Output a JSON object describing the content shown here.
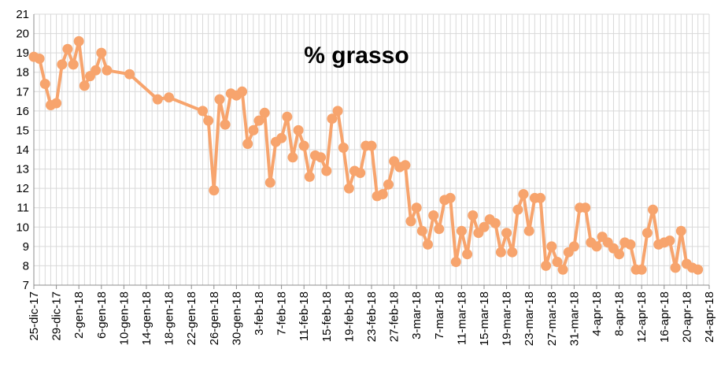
{
  "chart_data": {
    "type": "line",
    "title": "% grasso",
    "xlabel": "",
    "ylabel": "",
    "ylim": [
      7,
      21
    ],
    "y_ticks": [
      7,
      8,
      9,
      10,
      11,
      12,
      13,
      14,
      15,
      16,
      17,
      18,
      19,
      20,
      21
    ],
    "x_range": [
      "2017-12-25",
      "2018-04-24"
    ],
    "x_tick_labels": [
      "25-dic-17",
      "29-dic-17",
      "2-gen-18",
      "6-gen-18",
      "10-gen-18",
      "14-gen-18",
      "18-gen-18",
      "22-gen-18",
      "26-gen-18",
      "30-gen-18",
      "3-feb-18",
      "7-feb-18",
      "11-feb-18",
      "15-feb-18",
      "19-feb-18",
      "23-feb-18",
      "27-feb-18",
      "3-mar-18",
      "7-mar-18",
      "11-mar-18",
      "15-mar-18",
      "19-mar-18",
      "23-mar-18",
      "27-mar-18",
      "31-mar-18",
      "4-apr-18",
      "8-apr-18",
      "12-apr-18",
      "16-apr-18",
      "20-apr-18",
      "24-apr-18"
    ],
    "grid": true,
    "line_color": "#f7a46d",
    "series": [
      {
        "x": [
          "2017-12-25",
          "2017-12-26",
          "2017-12-27",
          "2017-12-28",
          "2017-12-29",
          "2017-12-30",
          "2017-12-31",
          "2018-01-01",
          "2018-01-02",
          "2018-01-03",
          "2018-01-04",
          "2018-01-05",
          "2018-01-06",
          "2018-01-07",
          "2018-01-11",
          "2018-01-16",
          "2018-01-18",
          "2018-01-24",
          "2018-01-25",
          "2018-01-26",
          "2018-01-27",
          "2018-01-28",
          "2018-01-29",
          "2018-01-30",
          "2018-01-31",
          "2018-02-01",
          "2018-02-02",
          "2018-02-03",
          "2018-02-04",
          "2018-02-05",
          "2018-02-06",
          "2018-02-07",
          "2018-02-08",
          "2018-02-09",
          "2018-02-10",
          "2018-02-11",
          "2018-02-12",
          "2018-02-13",
          "2018-02-14",
          "2018-02-15",
          "2018-02-16",
          "2018-02-17",
          "2018-02-18",
          "2018-02-19",
          "2018-02-20",
          "2018-02-21",
          "2018-02-22",
          "2018-02-23",
          "2018-02-24",
          "2018-02-25",
          "2018-02-26",
          "2018-02-27",
          "2018-02-28",
          "2018-03-01",
          "2018-03-02",
          "2018-03-03",
          "2018-03-04",
          "2018-03-05",
          "2018-03-06",
          "2018-03-07",
          "2018-03-08",
          "2018-03-09",
          "2018-03-10",
          "2018-03-11",
          "2018-03-12",
          "2018-03-13",
          "2018-03-14",
          "2018-03-15",
          "2018-03-16",
          "2018-03-17",
          "2018-03-18",
          "2018-03-19",
          "2018-03-20",
          "2018-03-21",
          "2018-03-22",
          "2018-03-23",
          "2018-03-24",
          "2018-03-25",
          "2018-03-26",
          "2018-03-27",
          "2018-03-28",
          "2018-03-29",
          "2018-03-30",
          "2018-03-31",
          "2018-04-01",
          "2018-04-02",
          "2018-04-03",
          "2018-04-04",
          "2018-04-05",
          "2018-04-06",
          "2018-04-07",
          "2018-04-08",
          "2018-04-09",
          "2018-04-10",
          "2018-04-11",
          "2018-04-12",
          "2018-04-13",
          "2018-04-14",
          "2018-04-15",
          "2018-04-16",
          "2018-04-17",
          "2018-04-18",
          "2018-04-19",
          "2018-04-20",
          "2018-04-21",
          "2018-04-22"
        ],
        "y": [
          18.8,
          18.7,
          17.4,
          16.3,
          16.4,
          18.4,
          19.2,
          18.4,
          19.6,
          17.3,
          17.8,
          18.1,
          19.0,
          18.1,
          17.9,
          16.6,
          16.7,
          16.0,
          15.5,
          11.9,
          16.6,
          15.3,
          16.9,
          16.8,
          17.0,
          14.3,
          15.0,
          15.5,
          15.9,
          12.3,
          14.4,
          14.6,
          15.7,
          13.6,
          15.0,
          14.2,
          12.6,
          13.7,
          13.6,
          12.9,
          15.6,
          16.0,
          14.1,
          12.0,
          12.9,
          12.8,
          14.2,
          14.2,
          11.6,
          11.7,
          12.2,
          13.4,
          13.1,
          13.2,
          10.3,
          11.0,
          9.8,
          9.1,
          10.6,
          9.9,
          11.4,
          11.5,
          8.2,
          9.8,
          8.6,
          10.6,
          9.7,
          10.0,
          10.4,
          10.2,
          8.7,
          9.7,
          8.7,
          10.9,
          11.7,
          9.8,
          11.5,
          11.5,
          8.0,
          9.0,
          8.2,
          7.8,
          8.7,
          9.0,
          11.0,
          11.0,
          9.2,
          9.0,
          9.5,
          9.2,
          8.9,
          8.6,
          9.2,
          9.1,
          7.8,
          7.8,
          9.7,
          10.9,
          9.1,
          9.2,
          9.3,
          7.9,
          9.8,
          8.1,
          7.9,
          7.8
        ]
      }
    ]
  }
}
